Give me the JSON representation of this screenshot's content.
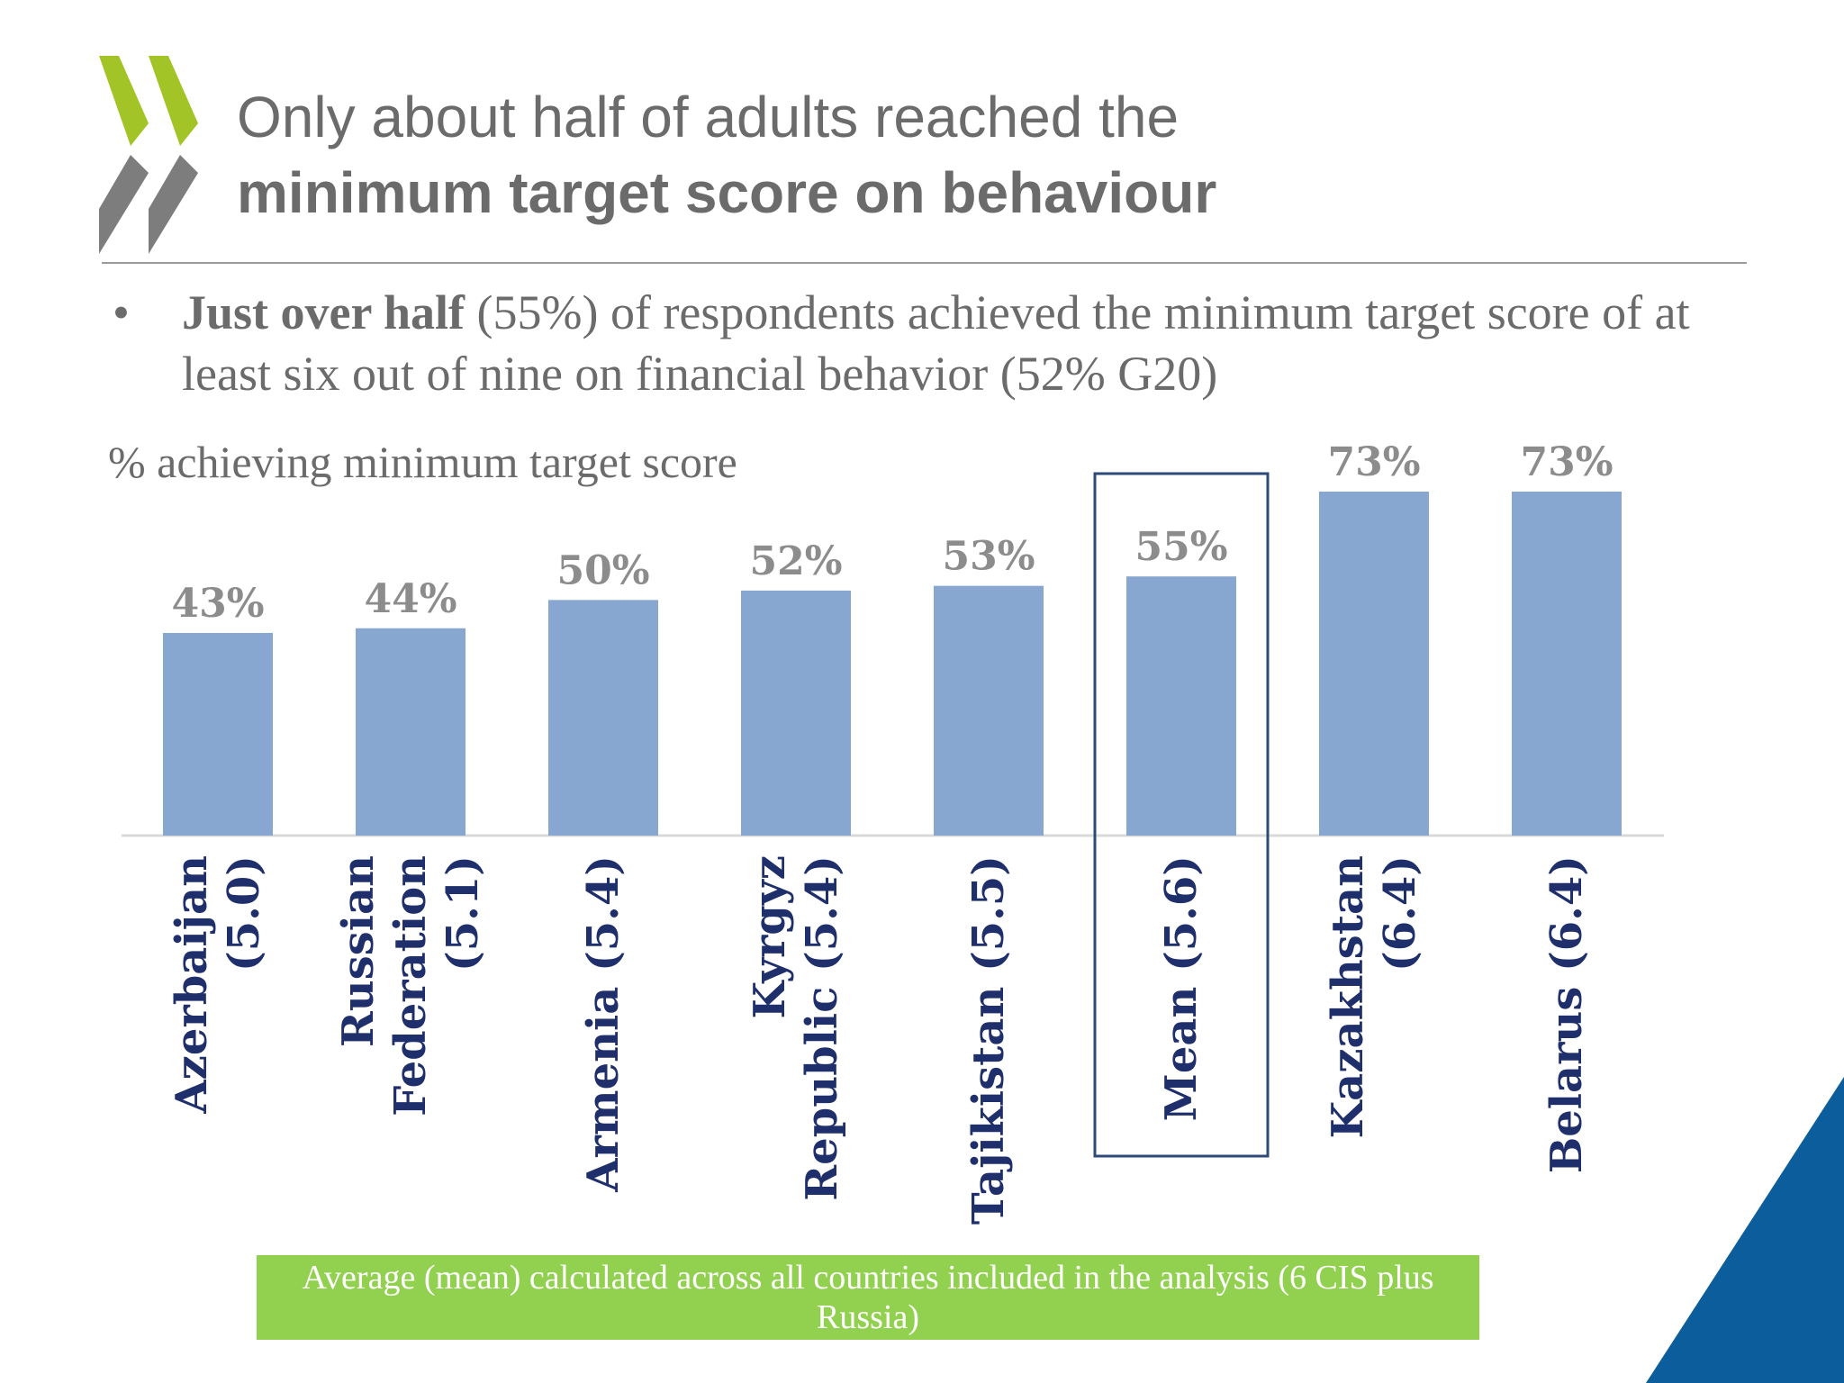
{
  "slide": {
    "title_line1": "Only about half of adults reached the",
    "title_line2": "minimum target score on behaviour",
    "bullet_symbol": "•",
    "bullet_bold": "Just over half",
    "bullet_rest": " (55%) of respondents achieved the minimum target score of at least six out of nine on financial behavior (52% G20)",
    "chart_caption": "% achieving minimum target score",
    "note": "Average (mean) calculated across all countries included in the analysis (6 CIS plus Russia)"
  },
  "colors": {
    "bar": "#87a7d0",
    "category_text": "#1f2f6b",
    "value_text": "#8c8c8c",
    "highlight_box": "#2e4a7a",
    "note_bg": "#92d050",
    "logo_green": "#a3c426",
    "logo_grey": "#7d7d7d",
    "corner_blue": "#0b5e9b"
  },
  "chart_data": {
    "type": "bar",
    "title": "% achieving minimum target score",
    "categories": [
      [
        "Azerbaijan",
        "(5.0)"
      ],
      [
        "Russian",
        "Federation",
        "(5.1)"
      ],
      [
        "Armenia (5.4)"
      ],
      [
        "Kyrgyz",
        "Republic (5.4)"
      ],
      [
        "Tajikistan (5.5)"
      ],
      [
        "Mean (5.6)"
      ],
      [
        "Kazakhstan",
        "(6.4)"
      ],
      [
        "Belarus (6.4)"
      ]
    ],
    "values": [
      43,
      44,
      50,
      52,
      53,
      55,
      73,
      73
    ],
    "value_labels": [
      "43%",
      "44%",
      "50%",
      "52%",
      "53%",
      "55%",
      "73%",
      "73%"
    ],
    "highlight_index": 5,
    "ylim": [
      0,
      73
    ],
    "xlabel": "",
    "ylabel": ""
  }
}
